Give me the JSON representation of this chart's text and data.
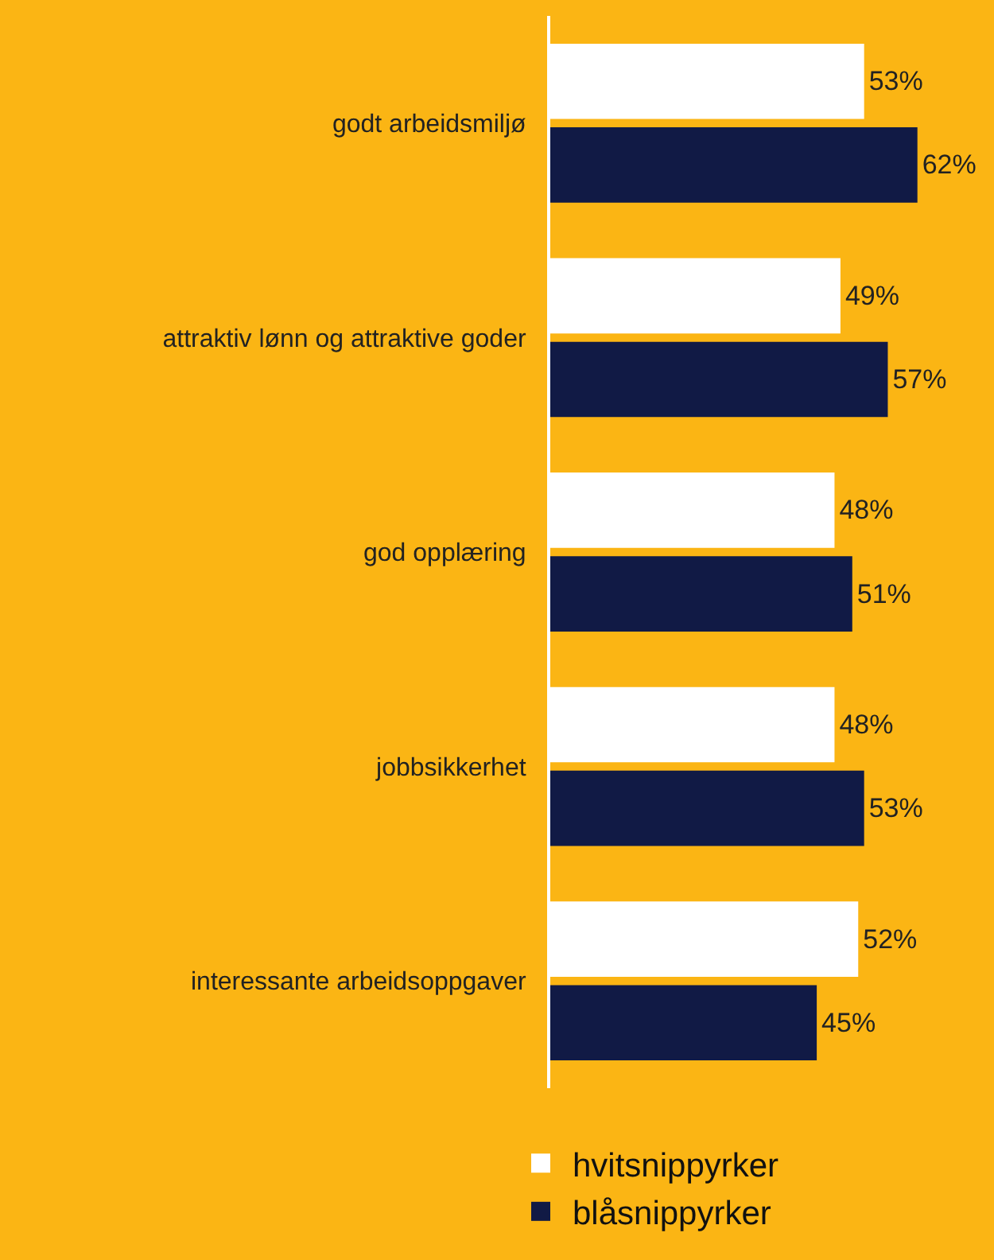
{
  "chart_data": {
    "type": "bar",
    "orientation": "horizontal",
    "categories": [
      "godt arbeidsmiljø",
      "attraktiv lønn og attraktive goder",
      "god opplæring",
      "jobbsikkerhet",
      "interessante arbeidsoppgaver"
    ],
    "series": [
      {
        "name": "hvitsnippyrker",
        "color": "#ffffff",
        "values": [
          53,
          49,
          48,
          48,
          52
        ],
        "value_labels": [
          "53%",
          "49%",
          "48%",
          "48%",
          "52%"
        ]
      },
      {
        "name": "blåsnippyrker",
        "color": "#111a45",
        "values": [
          62,
          57,
          51,
          53,
          45
        ],
        "value_labels": [
          "62%",
          "57%",
          "51%",
          "53%",
          "45%"
        ]
      }
    ],
    "legend": "bottom",
    "grid": false,
    "tick_labels": "y"
  }
}
